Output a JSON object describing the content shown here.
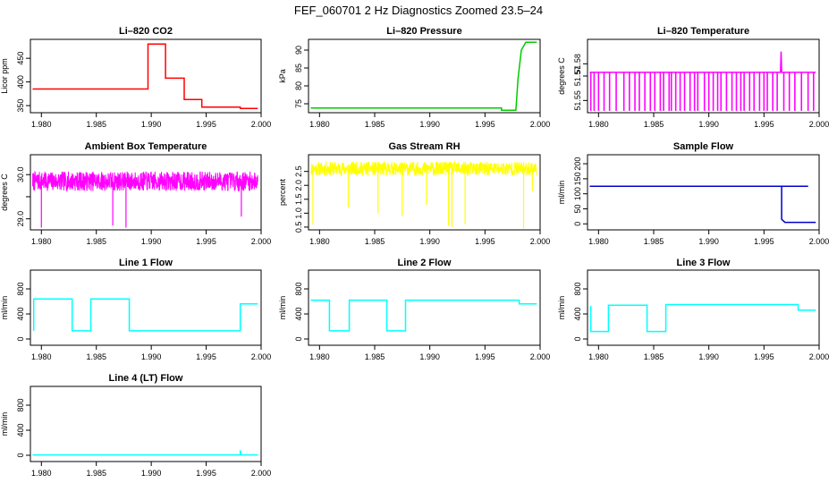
{
  "page_title": "FEF_060701  2 Hz Diagnostics Zoomed 23.5–24",
  "chart_data": [
    {
      "type": "line",
      "title": "Li–820 CO2",
      "ylabel": "Licor ppm",
      "xlim": [
        1.979,
        2.0
      ],
      "ylim": [
        335,
        490
      ],
      "xticks": [
        1.98,
        1.985,
        1.99,
        1.995,
        2.0
      ],
      "xtick_labels": [
        "1.980",
        "1.985",
        "1.990",
        "1.995",
        "2.000"
      ],
      "yticks": [
        350,
        400,
        450
      ],
      "ytick_labels": [
        "350",
        "400",
        "450"
      ],
      "series": [
        {
          "color": "#ff0000",
          "x": [
            1.9792,
            1.9897,
            1.9897,
            1.9913,
            1.9913,
            1.993,
            1.993,
            1.9946,
            1.9946,
            1.9981,
            1.9981,
            1.9997
          ],
          "y": [
            385,
            385,
            480,
            480,
            408,
            408,
            363,
            363,
            347,
            347,
            344,
            344
          ]
        }
      ]
    },
    {
      "type": "line",
      "title": "Li–820 Pressure",
      "ylabel": "kPa",
      "xlim": [
        1.979,
        2.0
      ],
      "ylim": [
        72.5,
        93.0
      ],
      "xticks": [
        1.98,
        1.985,
        1.99,
        1.995,
        2.0
      ],
      "xtick_labels": [
        "1.980",
        "1.985",
        "1.990",
        "1.995",
        "2.000"
      ],
      "yticks": [
        75,
        80,
        85,
        90
      ],
      "ytick_labels": [
        "75",
        "80",
        "85",
        "90"
      ],
      "series": [
        {
          "color": "#00cc00",
          "x": [
            1.9792,
            1.9965,
            1.9965,
            1.9978,
            1.998,
            1.9983,
            1.9987,
            1.9997
          ],
          "y": [
            73.8,
            73.8,
            73.2,
            73.2,
            82,
            90,
            92.2,
            92.2
          ]
        }
      ]
    },
    {
      "type": "line",
      "title": "Li–820 Temperature",
      "ylabel": "degrees C",
      "xlim": [
        1.979,
        2.0
      ],
      "ylim": [
        51.54,
        51.6
      ],
      "xticks": [
        1.98,
        1.985,
        1.99,
        1.995,
        2.0
      ],
      "xtick_labels": [
        "1.980",
        "1.985",
        "1.990",
        "1.995",
        "2.000"
      ],
      "yticks": [
        51.55,
        51.57,
        51.58
      ],
      "ytick_labels": [
        "51.55",
        "51.57",
        "51.58"
      ],
      "series": [
        {
          "color": "#ff00ff",
          "x": [
            1.9792,
            1.9965,
            1.99655,
            1.9966,
            1.9997
          ],
          "y": [
            51.573,
            51.573,
            51.59,
            51.573,
            51.573
          ],
          "drops_to": 51.5415,
          "drops_at": [
            1.9793,
            1.9796,
            1.98,
            1.9805,
            1.981,
            1.9816,
            1.9823,
            1.9828,
            1.9833,
            1.9837,
            1.9842,
            1.9847,
            1.9851,
            1.9856,
            1.9859,
            1.9864,
            1.9866,
            1.987,
            1.9874,
            1.9878,
            1.9883,
            1.9887,
            1.989,
            1.9896,
            1.99,
            1.9904,
            1.9908,
            1.9911,
            1.9916,
            1.9921,
            1.9925,
            1.9929,
            1.9932,
            1.9937,
            1.9941,
            1.9946,
            1.995,
            1.9953,
            1.9958,
            1.9962,
            1.9968,
            1.9973,
            1.9978,
            1.9984,
            1.999,
            1.9995
          ]
        }
      ]
    },
    {
      "type": "line",
      "title": "Ambient Box Temperature",
      "ylabel": "degrees C",
      "xlim": [
        1.979,
        2.0
      ],
      "ylim": [
        28.75,
        30.45
      ],
      "xticks": [
        1.98,
        1.985,
        1.99,
        1.995,
        2.0
      ],
      "xtick_labels": [
        "1.980",
        "1.985",
        "1.990",
        "1.995",
        "2.000"
      ],
      "yticks": [
        29.0,
        29.5,
        30.0
      ],
      "ytick_labels": [
        "29.0",
        "",
        "30.0"
      ],
      "series": [
        {
          "color": "#ff00ff",
          "noise": {
            "center": 29.85,
            "amplitude": 0.22,
            "seed": 7
          },
          "x": [
            1.9792,
            1.9997
          ],
          "spikes": [
            [
              1.98,
              28.8
            ],
            [
              1.9865,
              28.85
            ],
            [
              1.9877,
              28.8
            ],
            [
              1.9982,
              29.05
            ]
          ]
        }
      ]
    },
    {
      "type": "line",
      "title": "Gas Stream RH",
      "ylabel": "percent",
      "xlim": [
        1.979,
        2.0
      ],
      "ylim": [
        0.4,
        3.1
      ],
      "xticks": [
        1.98,
        1.985,
        1.99,
        1.995,
        2.0
      ],
      "xtick_labels": [
        "1.980",
        "1.985",
        "1.990",
        "1.995",
        "2.000"
      ],
      "yticks": [
        0.5,
        1.0,
        1.5,
        2.0,
        2.5
      ],
      "ytick_labels": [
        "0.5",
        "1.0",
        "1.5",
        "2.0",
        "2.5"
      ],
      "series": [
        {
          "color": "#ffff00",
          "noise": {
            "center": 2.6,
            "amplitude": 0.25,
            "seed": 11
          },
          "x": [
            1.9792,
            1.9997
          ],
          "spikes": [
            [
              1.9794,
              0.6
            ],
            [
              1.9826,
              1.2
            ],
            [
              1.9853,
              1.0
            ],
            [
              1.9875,
              0.9
            ],
            [
              1.9897,
              1.3
            ],
            [
              1.9917,
              0.55
            ],
            [
              1.992,
              0.5
            ],
            [
              1.9932,
              0.6
            ],
            [
              1.9985,
              0.45
            ],
            [
              1.9993,
              1.8
            ]
          ]
        }
      ]
    },
    {
      "type": "line",
      "title": "Sample Flow",
      "ylabel": "ml/min",
      "xlim": [
        1.979,
        2.0
      ],
      "ylim": [
        -20,
        230
      ],
      "xticks": [
        1.98,
        1.985,
        1.99,
        1.995,
        2.0
      ],
      "xtick_labels": [
        "1.980",
        "1.985",
        "1.990",
        "1.995",
        "2.000"
      ],
      "yticks": [
        0,
        50,
        100,
        150,
        200
      ],
      "ytick_labels": [
        "0",
        "50",
        "100",
        "150",
        "200"
      ],
      "series": [
        {
          "color": "#0000cc",
          "x": [
            1.9792,
            1.999,
            1.9966,
            1.9966,
            1.9969,
            1.9997
          ],
          "y": [
            125,
            125,
            125,
            15,
            5,
            5
          ]
        }
      ]
    },
    {
      "type": "line",
      "title": "Line 1 Flow",
      "ylabel": "ml/min",
      "xlim": [
        1.979,
        2.0
      ],
      "ylim": [
        -100,
        1100
      ],
      "xticks": [
        1.98,
        1.985,
        1.99,
        1.995,
        2.0
      ],
      "xtick_labels": [
        "1.980",
        "1.985",
        "1.990",
        "1.995",
        "2.000"
      ],
      "yticks": [
        0,
        400,
        800
      ],
      "ytick_labels": [
        "0",
        "400",
        "800"
      ],
      "series": [
        {
          "color": "#00ffff",
          "x": [
            1.9793,
            1.9793,
            1.9828,
            1.9828,
            1.9845,
            1.9845,
            1.988,
            1.988,
            1.9981,
            1.9981,
            1.9997
          ],
          "y": [
            130,
            640,
            640,
            130,
            130,
            640,
            640,
            130,
            130,
            560,
            560
          ]
        }
      ]
    },
    {
      "type": "line",
      "title": "Line 2 Flow",
      "ylabel": "ml/min",
      "xlim": [
        1.979,
        2.0
      ],
      "ylim": [
        -100,
        1100
      ],
      "xticks": [
        1.98,
        1.985,
        1.99,
        1.995,
        2.0
      ],
      "xtick_labels": [
        "1.980",
        "1.985",
        "1.990",
        "1.995",
        "2.000"
      ],
      "yticks": [
        0,
        400,
        800
      ],
      "ytick_labels": [
        "0",
        "400",
        "800"
      ],
      "series": [
        {
          "color": "#00ffff",
          "x": [
            1.9792,
            1.9809,
            1.9809,
            1.9827,
            1.9827,
            1.9861,
            1.9861,
            1.9878,
            1.9878,
            1.9981,
            1.9981,
            1.9997
          ],
          "y": [
            620,
            620,
            130,
            130,
            620,
            620,
            130,
            130,
            620,
            620,
            560,
            560
          ]
        }
      ]
    },
    {
      "type": "line",
      "title": "Line 3 Flow",
      "ylabel": "ml/min",
      "xlim": [
        1.979,
        2.0
      ],
      "ylim": [
        -100,
        1100
      ],
      "xticks": [
        1.98,
        1.985,
        1.99,
        1.995,
        2.0
      ],
      "xtick_labels": [
        "1.980",
        "1.985",
        "1.990",
        "1.995",
        "2.000"
      ],
      "yticks": [
        0,
        400,
        800
      ],
      "ytick_labels": [
        "0",
        "400",
        "800"
      ],
      "series": [
        {
          "color": "#00ffff",
          "x": [
            1.9793,
            1.9793,
            1.9809,
            1.9809,
            1.9844,
            1.9844,
            1.9861,
            1.9861,
            1.9981,
            1.9981,
            1.9997
          ],
          "y": [
            530,
            120,
            120,
            540,
            540,
            120,
            120,
            550,
            550,
            460,
            460
          ]
        }
      ]
    },
    {
      "type": "line",
      "title": "Line 4 (LT) Flow",
      "ylabel": "ml/min",
      "xlim": [
        1.979,
        2.0
      ],
      "ylim": [
        -100,
        1100
      ],
      "xticks": [
        1.98,
        1.985,
        1.99,
        1.995,
        2.0
      ],
      "xtick_labels": [
        "1.980",
        "1.985",
        "1.990",
        "1.995",
        "2.000"
      ],
      "yticks": [
        0,
        400,
        800
      ],
      "ytick_labels": [
        "0",
        "400",
        "800"
      ],
      "series": [
        {
          "color": "#00ffff",
          "x": [
            1.9792,
            1.9981,
            1.9981,
            1.99815,
            1.9982,
            1.9997
          ],
          "y": [
            5,
            5,
            80,
            5,
            5,
            5
          ]
        }
      ]
    }
  ]
}
